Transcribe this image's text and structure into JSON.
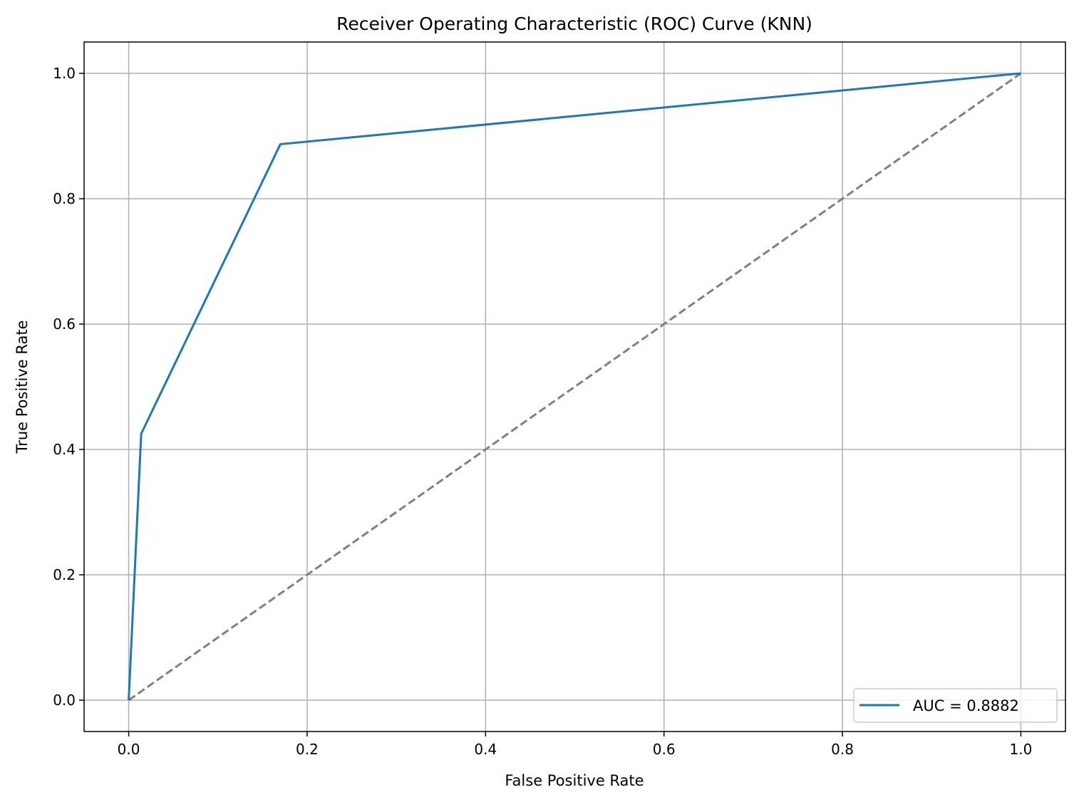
{
  "chart_data": {
    "type": "line",
    "title": "Receiver Operating Characteristic (ROC) Curve (KNN)",
    "xlabel": "False Positive Rate",
    "ylabel": "True Positive Rate",
    "xlim": [
      -0.05,
      1.05
    ],
    "ylim": [
      -0.05,
      1.05
    ],
    "x_ticks": [
      0.0,
      0.2,
      0.4,
      0.6,
      0.8,
      1.0
    ],
    "y_ticks": [
      0.0,
      0.2,
      0.4,
      0.6,
      0.8,
      1.0
    ],
    "x_tick_labels": [
      "0.0",
      "0.2",
      "0.4",
      "0.6",
      "0.8",
      "1.0"
    ],
    "y_tick_labels": [
      "0.0",
      "0.2",
      "0.4",
      "0.6",
      "0.8",
      "1.0"
    ],
    "grid": true,
    "legend_position": "lower-right",
    "series": [
      {
        "name": "AUC = 0.8882",
        "color": "#1f77b4",
        "style": "solid",
        "x": [
          0.0,
          0.014,
          0.17,
          1.0
        ],
        "y": [
          0.0,
          0.425,
          0.887,
          1.0
        ]
      },
      {
        "color": "#808080",
        "style": "dashed",
        "x": [
          0.0,
          1.0
        ],
        "y": [
          0.0,
          1.0
        ]
      }
    ]
  }
}
